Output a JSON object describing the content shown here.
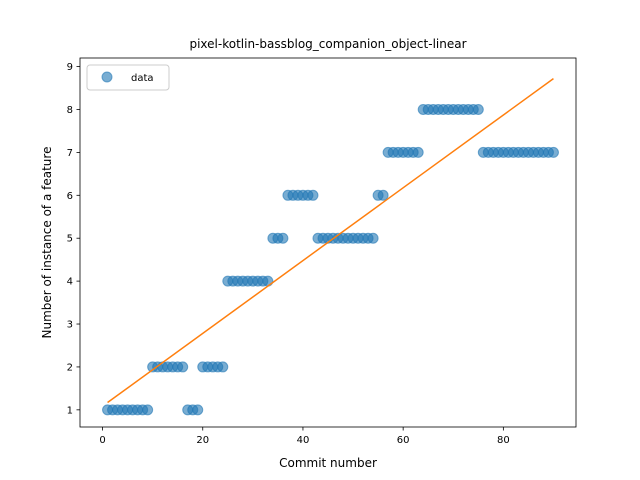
{
  "chart_data": {
    "type": "scatter",
    "title": "pixel-kotlin-bassblog_companion_object-linear",
    "xlabel": "Commit number",
    "ylabel": "Number of instance of a feature",
    "xlim": [
      -4.5,
      94.5
    ],
    "ylim": [
      0.6,
      9.2
    ],
    "xticks": [
      0,
      20,
      40,
      60,
      80
    ],
    "yticks": [
      1,
      2,
      3,
      4,
      5,
      6,
      7,
      8,
      9
    ],
    "legend": {
      "placement": "top-left",
      "entries": [
        "data"
      ]
    },
    "grid": false,
    "series": [
      {
        "name": "data",
        "kind": "scatter",
        "color": "#1f77b4",
        "x": [
          1,
          2,
          3,
          4,
          5,
          6,
          7,
          8,
          9,
          10,
          11,
          12,
          13,
          14,
          15,
          16,
          17,
          18,
          19,
          20,
          21,
          22,
          23,
          24,
          25,
          26,
          27,
          28,
          29,
          30,
          31,
          32,
          33,
          34,
          35,
          36,
          37,
          38,
          39,
          40,
          41,
          42,
          43,
          44,
          45,
          46,
          47,
          48,
          49,
          50,
          51,
          52,
          53,
          54,
          55,
          56,
          57,
          58,
          59,
          60,
          61,
          62,
          63,
          64,
          65,
          66,
          67,
          68,
          69,
          70,
          71,
          72,
          73,
          74,
          75,
          76,
          77,
          78,
          79,
          80,
          81,
          82,
          83,
          84,
          85,
          86,
          87,
          88,
          89,
          90
        ],
        "y": [
          1,
          1,
          1,
          1,
          1,
          1,
          1,
          1,
          1,
          2,
          2,
          2,
          2,
          2,
          2,
          2,
          1,
          1,
          1,
          2,
          2,
          2,
          2,
          2,
          4,
          4,
          4,
          4,
          4,
          4,
          4,
          4,
          4,
          5,
          5,
          5,
          6,
          6,
          6,
          6,
          6,
          6,
          5,
          5,
          5,
          5,
          5,
          5,
          5,
          5,
          5,
          5,
          5,
          5,
          6,
          6,
          7,
          7,
          7,
          7,
          7,
          7,
          7,
          8,
          8,
          8,
          8,
          8,
          8,
          8,
          8,
          8,
          8,
          8,
          8,
          7,
          7,
          7,
          7,
          7,
          7,
          7,
          7,
          7,
          7,
          7,
          7,
          7,
          7,
          7
        ]
      },
      {
        "kind": "line",
        "color": "#ff7f0e",
        "x": [
          1,
          90
        ],
        "y": [
          1.17,
          8.72
        ]
      }
    ]
  }
}
